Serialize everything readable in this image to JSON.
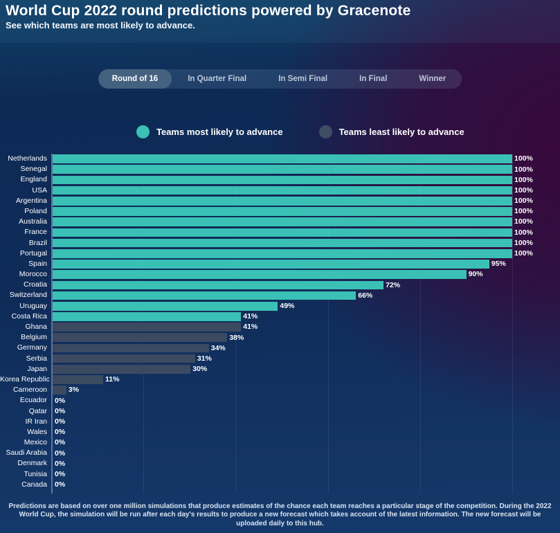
{
  "header": {
    "title": "World Cup 2022 round predictions powered by Gracenote",
    "subtitle": "See which teams are most likely to advance."
  },
  "tabs": [
    {
      "label": "Round of 16",
      "active": true
    },
    {
      "label": "In Quarter Final",
      "active": false
    },
    {
      "label": "In Semi Final",
      "active": false
    },
    {
      "label": "In Final",
      "active": false
    },
    {
      "label": "Winner",
      "active": false
    }
  ],
  "legend": [
    {
      "label": "Teams most likely to advance",
      "color": "#3ac0b5"
    },
    {
      "label": "Teams least likely to advance",
      "color": "#3f4d63"
    }
  ],
  "chart_data": {
    "type": "bar",
    "orientation": "horizontal",
    "unit": "%",
    "xlim": [
      0,
      100
    ],
    "gridlines_percent": [
      0,
      20,
      40,
      60,
      80,
      100
    ],
    "bar_colors": {
      "most": "#3ac0b5",
      "least": "#3c4a61"
    },
    "teams": [
      {
        "name": "Netherlands",
        "value": 100,
        "group": "most"
      },
      {
        "name": "Senegal",
        "value": 100,
        "group": "most"
      },
      {
        "name": "England",
        "value": 100,
        "group": "most"
      },
      {
        "name": "USA",
        "value": 100,
        "group": "most"
      },
      {
        "name": "Argentina",
        "value": 100,
        "group": "most"
      },
      {
        "name": "Poland",
        "value": 100,
        "group": "most"
      },
      {
        "name": "Australia",
        "value": 100,
        "group": "most"
      },
      {
        "name": "France",
        "value": 100,
        "group": "most"
      },
      {
        "name": "Brazil",
        "value": 100,
        "group": "most"
      },
      {
        "name": "Portugal",
        "value": 100,
        "group": "most"
      },
      {
        "name": "Spain",
        "value": 95,
        "group": "most"
      },
      {
        "name": "Morocco",
        "value": 90,
        "group": "most"
      },
      {
        "name": "Croatia",
        "value": 72,
        "group": "most"
      },
      {
        "name": "Switzerland",
        "value": 66,
        "group": "most"
      },
      {
        "name": "Uruguay",
        "value": 49,
        "group": "most"
      },
      {
        "name": "Costa Rica",
        "value": 41,
        "group": "most"
      },
      {
        "name": "Ghana",
        "value": 41,
        "group": "least"
      },
      {
        "name": "Belgium",
        "value": 38,
        "group": "least"
      },
      {
        "name": "Germany",
        "value": 34,
        "group": "least"
      },
      {
        "name": "Serbia",
        "value": 31,
        "group": "least"
      },
      {
        "name": "Japan",
        "value": 30,
        "group": "least"
      },
      {
        "name": "Korea Republic",
        "value": 11,
        "group": "least"
      },
      {
        "name": "Cameroon",
        "value": 3,
        "group": "least"
      },
      {
        "name": "Ecuador",
        "value": 0,
        "group": "least"
      },
      {
        "name": "Qatar",
        "value": 0,
        "group": "least"
      },
      {
        "name": "IR Iran",
        "value": 0,
        "group": "least"
      },
      {
        "name": "Wales",
        "value": 0,
        "group": "least"
      },
      {
        "name": "Mexico",
        "value": 0,
        "group": "least"
      },
      {
        "name": "Saudi Arabia",
        "value": 0,
        "group": "least"
      },
      {
        "name": "Denmark",
        "value": 0,
        "group": "least"
      },
      {
        "name": "Tunisia",
        "value": 0,
        "group": "least"
      },
      {
        "name": "Canada",
        "value": 0,
        "group": "least"
      }
    ]
  },
  "footer": {
    "text": "Predictions are based on over one million simulations that produce estimates of the chance each team reaches a particular stage of the competition. During the 2022 World Cup, the simulation will be run after each day's results to produce a new forecast which takes account of the latest information. The new forecast will be uploaded daily to this hub."
  }
}
